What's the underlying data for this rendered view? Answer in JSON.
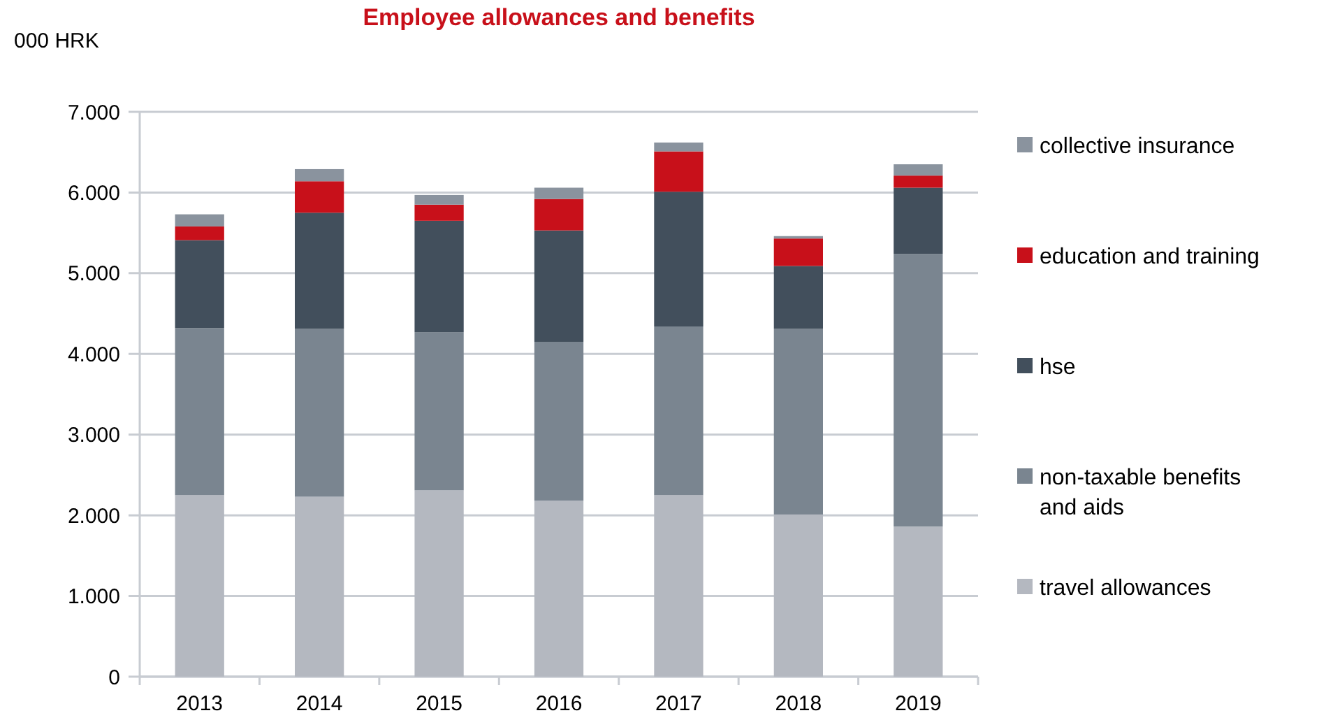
{
  "chart_data": {
    "type": "bar",
    "title": "Employee allowances and benefits",
    "ylabel": "000 HRK",
    "stacked": true,
    "categories": [
      "2013",
      "2014",
      "2015",
      "2016",
      "2017",
      "2018",
      "2019"
    ],
    "series": [
      {
        "name": "travel allowances",
        "color": "#b4b8c0",
        "values": [
          2250,
          2230,
          2310,
          2180,
          2250,
          2010,
          1860
        ]
      },
      {
        "name": "non-taxable benefits and aids",
        "color": "#7a8590",
        "values": [
          2070,
          2080,
          1960,
          1970,
          2090,
          2300,
          3380
        ]
      },
      {
        "name": "hse",
        "color": "#424f5c",
        "values": [
          1090,
          1440,
          1380,
          1380,
          1670,
          780,
          820
        ]
      },
      {
        "name": "education and training",
        "color": "#c8101a",
        "values": [
          170,
          390,
          200,
          390,
          500,
          340,
          150
        ]
      },
      {
        "name": "collective insurance",
        "color": "#8a939e",
        "values": [
          150,
          150,
          120,
          140,
          110,
          30,
          140
        ]
      }
    ],
    "ylim": [
      0,
      7000
    ],
    "yticks": [
      {
        "value": 0,
        "label": "0"
      },
      {
        "value": 1000,
        "label": "1.000"
      },
      {
        "value": 2000,
        "label": "2.000"
      },
      {
        "value": 3000,
        "label": "3.000"
      },
      {
        "value": 4000,
        "label": "4.000"
      },
      {
        "value": 5000,
        "label": "5.000"
      },
      {
        "value": 6000,
        "label": "6.000"
      },
      {
        "value": 7000,
        "label": "7.000"
      }
    ],
    "grid": "y",
    "legend": "right"
  }
}
